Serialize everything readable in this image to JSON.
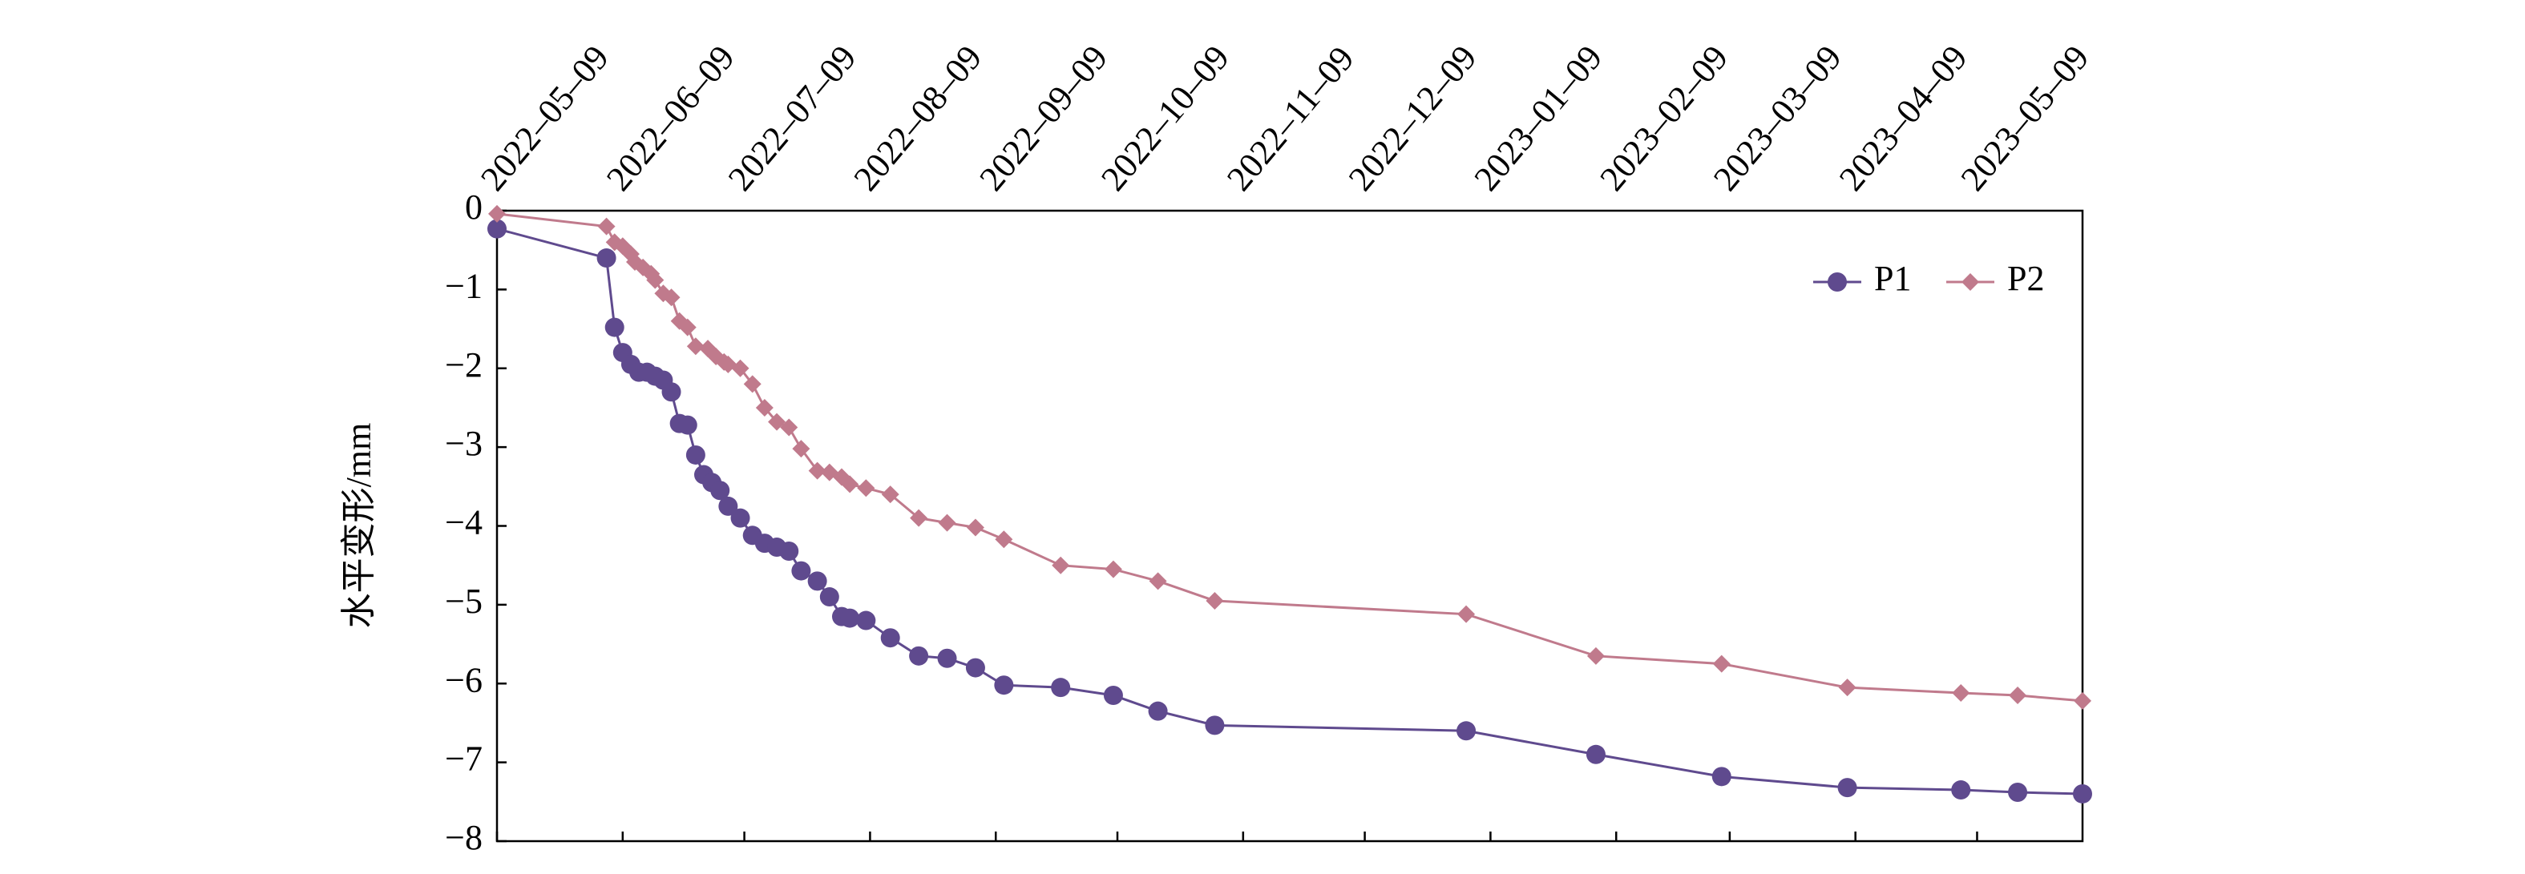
{
  "chart_data": {
    "type": "line",
    "y_label": "水平变形/mm",
    "xlim": [
      "2022-05-09",
      "2023-06-04"
    ],
    "xticks": [
      {
        "value": "2022-05-09",
        "label": "2022–05–09"
      },
      {
        "value": "2022-06-09",
        "label": "2022–06–09"
      },
      {
        "value": "2022-07-09",
        "label": "2022–07–09"
      },
      {
        "value": "2022-08-09",
        "label": "2022–08–09"
      },
      {
        "value": "2022-09-09",
        "label": "2022–09–09"
      },
      {
        "value": "2022-10-09",
        "label": "2022–10–09"
      },
      {
        "value": "2022-11-09",
        "label": "2022–11–09"
      },
      {
        "value": "2022-12-09",
        "label": "2022–12–09"
      },
      {
        "value": "2023-01-09",
        "label": "2023–01–09"
      },
      {
        "value": "2023-02-09",
        "label": "2023–02–09"
      },
      {
        "value": "2023-03-09",
        "label": "2023–03–09"
      },
      {
        "value": "2023-04-09",
        "label": "2023–04–09"
      },
      {
        "value": "2023-05-09",
        "label": "2023–05–09"
      }
    ],
    "ylim": [
      -8,
      0
    ],
    "yticks": [
      0,
      {
        "value": -1,
        "label": "−1"
      },
      {
        "value": -2,
        "label": "−2"
      },
      {
        "value": -3,
        "label": "−3"
      },
      {
        "value": -4,
        "label": "−4"
      },
      {
        "value": -5,
        "label": "−5"
      },
      {
        "value": -6,
        "label": "−6"
      },
      {
        "value": -7,
        "label": "−7"
      },
      {
        "value": -8,
        "label": "−8"
      }
    ],
    "legend": "upper right",
    "series": [
      {
        "name": "P1",
        "color": "#5f4a8e",
        "marker": "circle",
        "x": [
          "2022-05-09",
          "2022-06-05",
          "2022-06-07",
          "2022-06-09",
          "2022-06-11",
          "2022-06-13",
          "2022-06-15",
          "2022-06-17",
          "2022-06-19",
          "2022-06-21",
          "2022-06-23",
          "2022-06-25",
          "2022-06-27",
          "2022-06-29",
          "2022-07-01",
          "2022-07-03",
          "2022-07-05",
          "2022-07-08",
          "2022-07-11",
          "2022-07-14",
          "2022-07-17",
          "2022-07-20",
          "2022-07-23",
          "2022-07-27",
          "2022-07-30",
          "2022-08-02",
          "2022-08-04",
          "2022-08-08",
          "2022-08-14",
          "2022-08-21",
          "2022-08-28",
          "2022-09-04",
          "2022-09-11",
          "2022-09-25",
          "2022-10-08",
          "2022-10-19",
          "2022-11-02",
          "2023-01-03",
          "2023-02-04",
          "2023-03-07",
          "2023-04-07",
          "2023-05-05",
          "2023-05-19",
          "2023-06-04"
        ],
        "values": [
          -0.23,
          -0.6,
          -1.48,
          -1.8,
          -1.95,
          -2.05,
          -2.05,
          -2.1,
          -2.15,
          -2.3,
          -2.7,
          -2.72,
          -3.1,
          -3.35,
          -3.45,
          -3.55,
          -3.75,
          -3.9,
          -4.12,
          -4.22,
          -4.27,
          -4.32,
          -4.57,
          -4.7,
          -4.9,
          -5.15,
          -5.17,
          -5.2,
          -5.42,
          -5.65,
          -5.68,
          -5.8,
          -6.02,
          -6.05,
          -6.15,
          -6.35,
          -6.53,
          -6.6,
          -6.9,
          -7.18,
          -7.32,
          -7.35,
          -7.38,
          -7.4
        ]
      },
      {
        "name": "P2",
        "color": "#c07a8c",
        "marker": "diamond",
        "x": [
          "2022-05-09",
          "2022-06-05",
          "2022-06-07",
          "2022-06-09",
          "2022-06-11",
          "2022-06-12",
          "2022-06-14",
          "2022-06-16",
          "2022-06-17",
          "2022-06-19",
          "2022-06-21",
          "2022-06-23",
          "2022-06-25",
          "2022-06-27",
          "2022-06-30",
          "2022-07-02",
          "2022-07-04",
          "2022-07-05",
          "2022-07-08",
          "2022-07-11",
          "2022-07-14",
          "2022-07-17",
          "2022-07-20",
          "2022-07-23",
          "2022-07-27",
          "2022-07-30",
          "2022-08-02",
          "2022-08-04",
          "2022-08-08",
          "2022-08-14",
          "2022-08-21",
          "2022-08-28",
          "2022-09-04",
          "2022-09-11",
          "2022-09-25",
          "2022-10-08",
          "2022-10-19",
          "2022-11-02",
          "2023-01-03",
          "2023-02-04",
          "2023-03-07",
          "2023-04-07",
          "2023-05-05",
          "2023-05-19",
          "2023-06-04"
        ],
        "values": [
          -0.04,
          -0.2,
          -0.4,
          -0.45,
          -0.55,
          -0.65,
          -0.72,
          -0.8,
          -0.88,
          -1.05,
          -1.1,
          -1.4,
          -1.48,
          -1.72,
          -1.75,
          -1.85,
          -1.92,
          -1.95,
          -2.0,
          -2.2,
          -2.5,
          -2.68,
          -2.75,
          -3.02,
          -3.3,
          -3.32,
          -3.38,
          -3.47,
          -3.52,
          -3.6,
          -3.9,
          -3.96,
          -4.02,
          -4.17,
          -4.5,
          -4.55,
          -4.7,
          -4.95,
          -5.12,
          -5.65,
          -5.75,
          -6.05,
          -6.12,
          -6.15,
          -6.22
        ]
      }
    ]
  }
}
